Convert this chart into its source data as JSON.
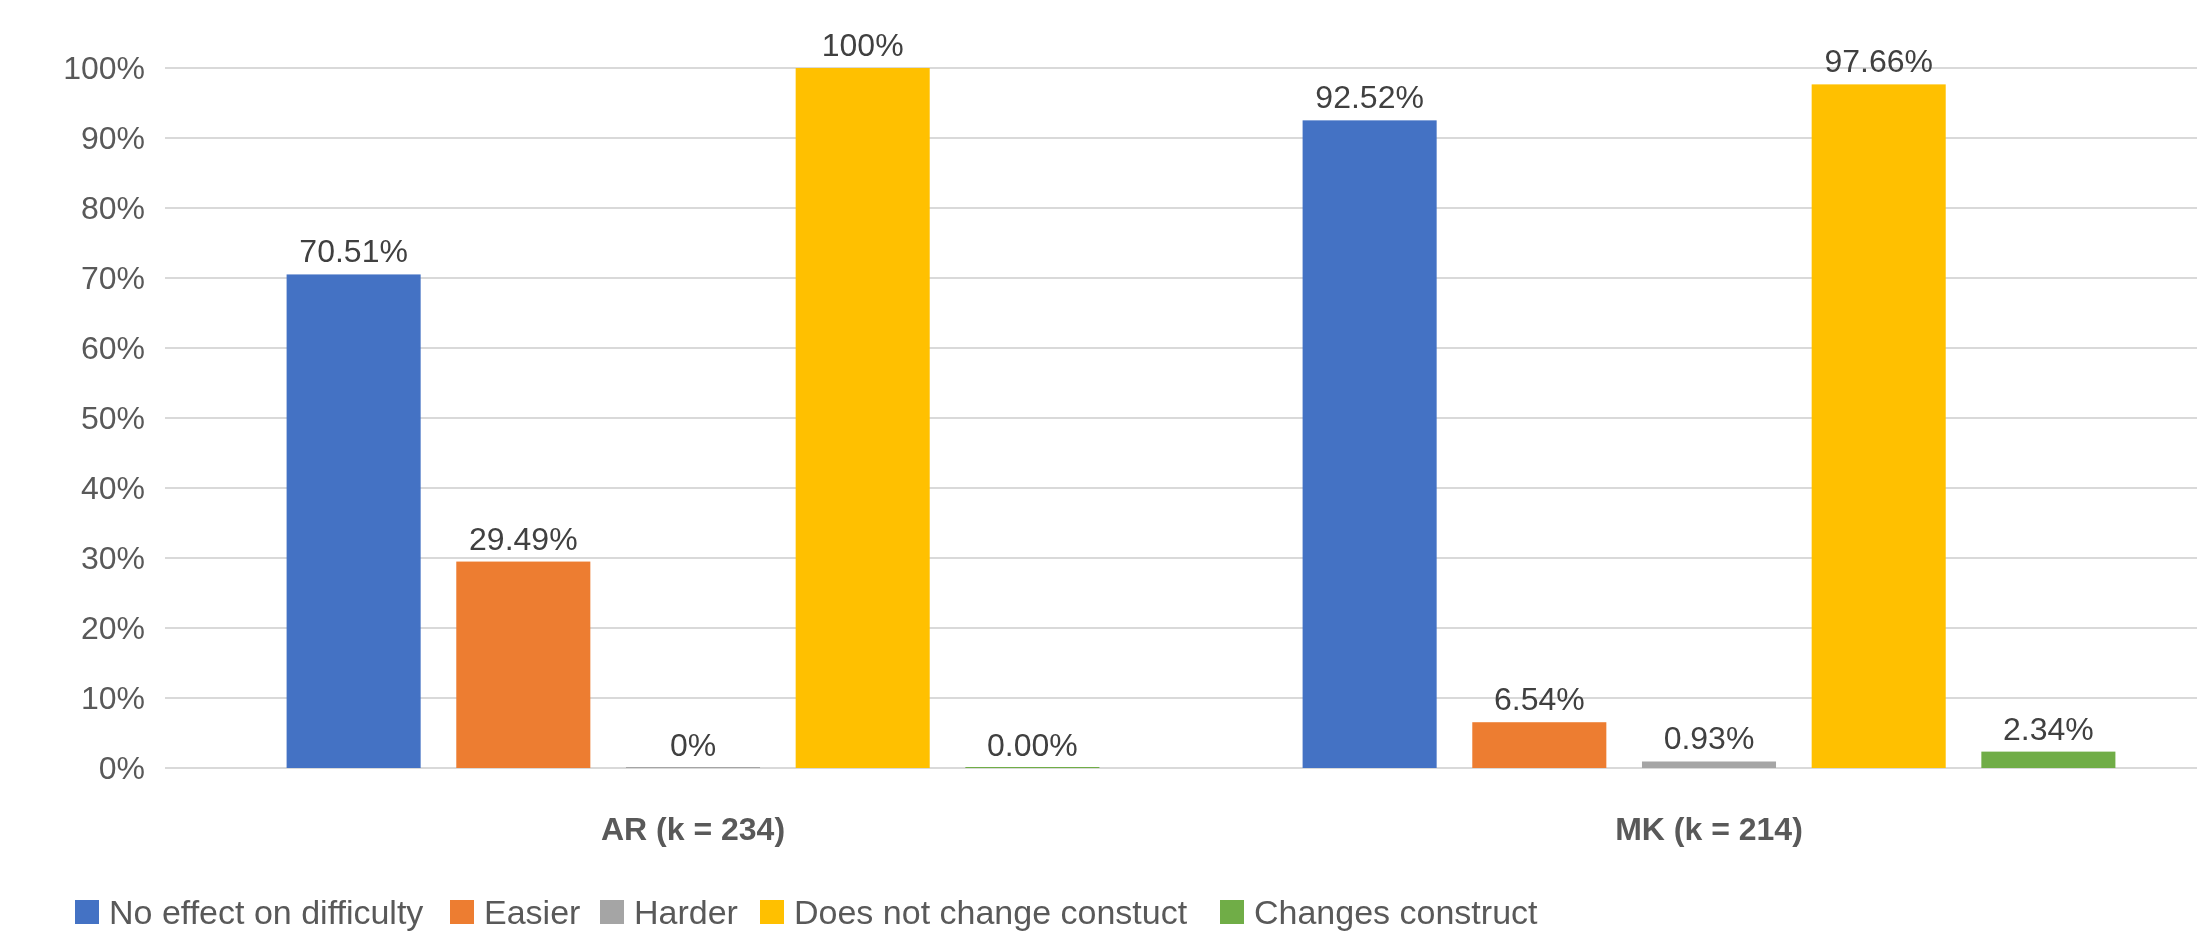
{
  "chart_data": {
    "type": "bar",
    "categories": [
      "AR (k = 234)",
      "MK (k = 214)"
    ],
    "series": [
      {
        "name": "No effect on difficulty",
        "color": "#4472c4",
        "values": [
          70.51,
          92.52
        ],
        "value_labels": [
          "70.51%",
          "92.52%"
        ]
      },
      {
        "name": "Easier",
        "color": "#ed7d31",
        "values": [
          29.49,
          6.54
        ],
        "value_labels": [
          "29.49%",
          "6.54%"
        ]
      },
      {
        "name": "Harder",
        "color": "#a5a5a5",
        "values": [
          0,
          0.93
        ],
        "value_labels": [
          "0%",
          "0.93%"
        ]
      },
      {
        "name": "Does not change constuct",
        "color": "#ffc000",
        "values": [
          100,
          97.66
        ],
        "value_labels": [
          "100%",
          "97.66%"
        ]
      },
      {
        "name": "Changes construct",
        "color": "#70ad47",
        "values": [
          0,
          2.34
        ],
        "value_labels": [
          "0.00%",
          "2.34%"
        ]
      }
    ],
    "ylim": [
      0,
      100
    ],
    "yticks": [
      {
        "value": 0,
        "label": "0%"
      },
      {
        "value": 10,
        "label": "10%"
      },
      {
        "value": 20,
        "label": "20%"
      },
      {
        "value": 30,
        "label": "30%"
      },
      {
        "value": 40,
        "label": "40%"
      },
      {
        "value": 50,
        "label": "50%"
      },
      {
        "value": 60,
        "label": "60%"
      },
      {
        "value": 70,
        "label": "70%"
      },
      {
        "value": 80,
        "label": "80%"
      },
      {
        "value": 90,
        "label": "90%"
      },
      {
        "value": 100,
        "label": "100%"
      }
    ],
    "grid": "y",
    "legend": "bottom"
  }
}
